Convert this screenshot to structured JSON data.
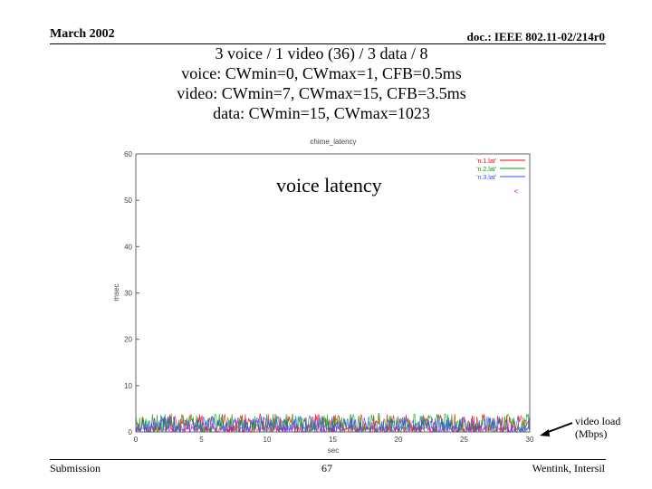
{
  "header": {
    "date": "March 2002",
    "doc": "doc.: IEEE 802.11-02/214r0"
  },
  "title_lines": [
    "3 voice / 1 video (36) / 3 data / 8",
    "voice: CWmin=0, CWmax=1, CFB=0.5ms",
    "video: CWmin=7, CWmax=15, CFB=3.5ms",
    "data: CWmin=15, CWmax=1023"
  ],
  "overlay_label": "voice latency",
  "annotation": {
    "line1": "video load",
    "line2": "(Mbps)"
  },
  "footer": {
    "left": "Submission",
    "page": "67",
    "right": "Wentink, Intersil"
  },
  "chart_data": {
    "type": "line",
    "title": "chime_latency",
    "xlabel": "sec",
    "ylabel": "msec",
    "xlim": [
      0,
      30
    ],
    "ylim": [
      0,
      60
    ],
    "xticks": [
      0,
      5,
      10,
      15,
      20,
      25,
      30
    ],
    "yticks": [
      0,
      10,
      20,
      30,
      40,
      50,
      60
    ],
    "grid": false,
    "legend_position": "top-right",
    "series": [
      {
        "name": "'n.1.lat'",
        "color": "#ff0000",
        "approx_range": [
          0,
          4
        ]
      },
      {
        "name": "'n.2.lat'",
        "color": "#00a000",
        "approx_range": [
          0,
          4
        ]
      },
      {
        "name": "'n.3.lat'",
        "color": "#3050ff",
        "approx_range": [
          0,
          3.5
        ]
      }
    ],
    "extra_point": {
      "x": 29,
      "y": 52,
      "color": "#c000c0"
    },
    "background_series_color": "#ff00ff"
  }
}
